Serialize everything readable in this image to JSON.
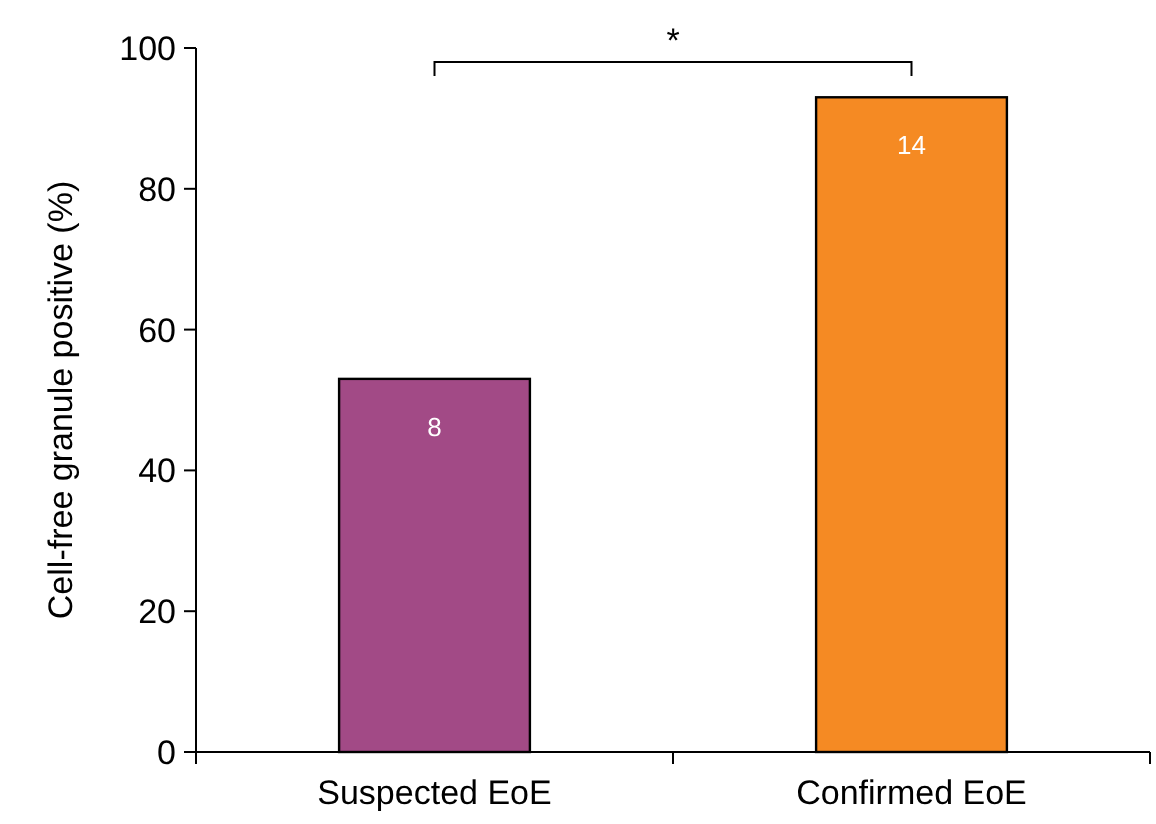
{
  "chart_data": {
    "type": "bar",
    "ylabel": "Cell-free granule positive (%)",
    "categories": [
      "Suspected EoE",
      "Confirmed EoE"
    ],
    "values": [
      53,
      93
    ],
    "colors": [
      "#a24a86",
      "#f58a23"
    ],
    "ylim": [
      0,
      100
    ],
    "yticks": [
      0,
      20,
      40,
      60,
      80,
      100
    ],
    "annotations": [
      "*",
      "8",
      "14"
    ]
  }
}
